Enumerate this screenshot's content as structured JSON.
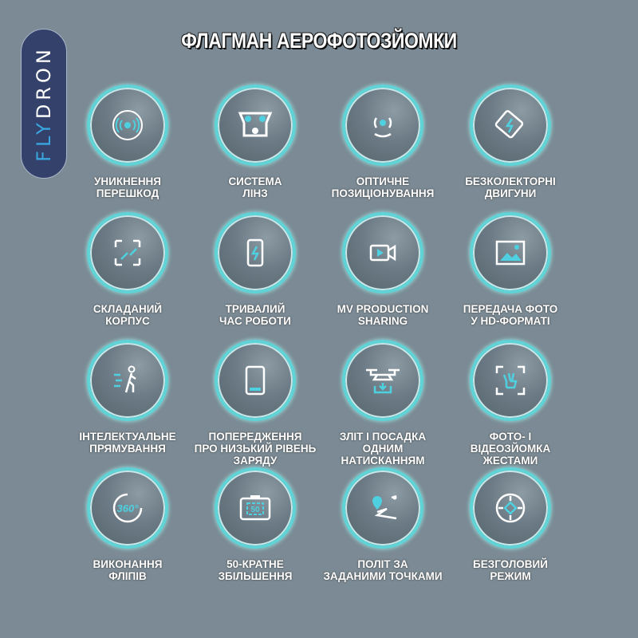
{
  "logo": {
    "part1": "FLY",
    "part2": "DRON"
  },
  "title": "ФЛАГМАН АЕРОФОТОЗЙОМКИ",
  "accent": "#5fd3d6",
  "features": [
    {
      "icon": "sonar-icon",
      "line1": "УНИКНЕННЯ",
      "line2": "ПЕРЕШКОД",
      "line3": ""
    },
    {
      "icon": "lens-system-icon",
      "line1": "СИСТЕМА",
      "line2": "ЛІНЗ",
      "line3": ""
    },
    {
      "icon": "optical-positioning-icon",
      "line1": "ОПТИЧНЕ",
      "line2": "ПОЗИЦІОНУВАННЯ",
      "line3": ""
    },
    {
      "icon": "brushless-motor-icon",
      "line1": "БЕЗКОЛЕКТОРНІ",
      "line2": "ДВИГУНИ",
      "line3": ""
    },
    {
      "icon": "fold-icon",
      "line1": "СКЛАДАНИЙ",
      "line2": "КОРПУС",
      "line3": ""
    },
    {
      "icon": "battery-charge-icon",
      "line1": "ТРИВАЛИЙ",
      "line2": "ЧАС РОБОТИ",
      "line3": ""
    },
    {
      "icon": "video-icon",
      "line1": "MV PRODUCTION",
      "line2": "SHARING",
      "line3": ""
    },
    {
      "icon": "image-icon",
      "line1": "ПЕРЕДАЧА ФОТО",
      "line2": "У HD-ФОРМАТІ",
      "line3": ""
    },
    {
      "icon": "follow-person-icon",
      "line1": "ІНТЕЛЕКТУАЛЬНЕ",
      "line2": "ПРЯМУВАННЯ",
      "line3": ""
    },
    {
      "icon": "low-battery-icon",
      "line1": "ПОПЕРЕДЖЕННЯ",
      "line2": "ПРО НИЗЬКИЙ РІВЕНЬ",
      "line3": "ЗАРЯДУ"
    },
    {
      "icon": "drone-takeoff-icon",
      "line1": "ЗЛІТ І ПОСАДКА",
      "line2": "ОДНИМ",
      "line3": "НАТИСКАННЯМ"
    },
    {
      "icon": "gesture-icon",
      "line1": "ФОТО- І",
      "line2": "ВІДЕОЗЙОМКА",
      "line3": "ЖЕСТАМИ"
    },
    {
      "icon": "flip-360-icon",
      "icon_text": "360°",
      "line1": "ВИКОНАННЯ",
      "line2": "ФЛІПІВ",
      "line3": ""
    },
    {
      "icon": "zoom-camera-icon",
      "icon_text": "50",
      "line1": "50-КРАТНЕ",
      "line2": "ЗБІЛЬШЕННЯ",
      "line3": ""
    },
    {
      "icon": "waypoint-icon",
      "line1": "ПОЛІТ ЗА",
      "line2": "ЗАДАНИМИ ТОЧКАМИ",
      "line3": ""
    },
    {
      "icon": "headless-mode-icon",
      "line1": "БЕЗГОЛОВИЙ",
      "line2": "РЕЖИМ",
      "line3": ""
    }
  ]
}
